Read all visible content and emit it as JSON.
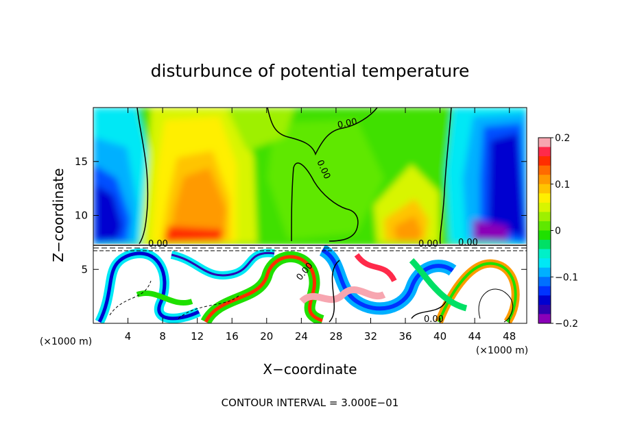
{
  "chart_data": {
    "type": "heatmap",
    "title": "disturbunce of potential temperature",
    "xlabel": "X−coordinate",
    "ylabel": "Z−coordinate",
    "x_unit_left": "(×1000 m)",
    "x_unit_right": "(×1000 m)",
    "footer": "CONTOUR INTERVAL = 3.000E−01",
    "xlim": [
      0,
      50
    ],
    "ylim": [
      0,
      20
    ],
    "x_ticks": [
      4,
      8,
      12,
      16,
      20,
      24,
      28,
      32,
      36,
      40,
      44,
      48
    ],
    "x_tick_labels": [
      "4",
      "8",
      "12",
      "16",
      "20",
      "24",
      "28",
      "32",
      "36",
      "40",
      "44",
      "48"
    ],
    "y_ticks": [
      5,
      10,
      15
    ],
    "y_tick_labels": [
      "5",
      "10",
      "15"
    ],
    "colorbar": {
      "range": [
        -0.2,
        0.2
      ],
      "ticks": [
        0.2,
        0.1,
        0,
        -0.1,
        -0.2
      ],
      "tick_labels": [
        "0.2",
        "0.1",
        "0",
        "−0.1",
        "−0.2"
      ],
      "colors": [
        "#f7a6b0",
        "#ff2a4a",
        "#ff2d00",
        "#ff6a00",
        "#ff9a00",
        "#ffc400",
        "#ffef00",
        "#d8f500",
        "#9ef000",
        "#5fe800",
        "#1fe000",
        "#00e065",
        "#00f0c8",
        "#00e8f5",
        "#00b0ff",
        "#0070ff",
        "#0033ff",
        "#0000d0",
        "#3000b0",
        "#8a00b8"
      ]
    },
    "contour_labels": [
      "0.00",
      "0.00",
      "0.00",
      "0.00",
      "0.00",
      "0.00",
      "0.00"
    ]
  }
}
